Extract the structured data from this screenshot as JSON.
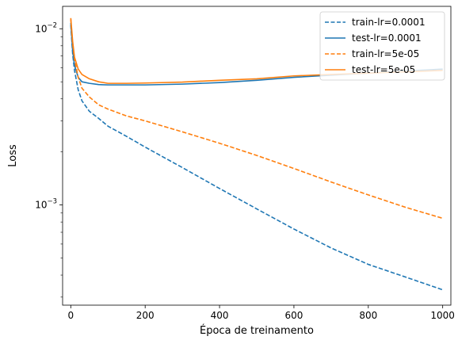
{
  "chart_data": {
    "type": "line",
    "title": "",
    "xlabel": "Época de treinamento",
    "ylabel": "Loss",
    "xlim": [
      -22,
      1022
    ],
    "ylim": [
      0.00027,
      0.0134
    ],
    "yscale": "log",
    "grid": false,
    "legend_position": "upper-right",
    "x_ticks": [
      {
        "value": 0,
        "label": "0"
      },
      {
        "value": 200,
        "label": "200"
      },
      {
        "value": 400,
        "label": "400"
      },
      {
        "value": 600,
        "label": "600"
      },
      {
        "value": 800,
        "label": "800"
      },
      {
        "value": 1000,
        "label": "1000"
      }
    ],
    "y_major_ticks": [
      {
        "value": 0.001,
        "label_base": "10",
        "label_exp": "−3"
      },
      {
        "value": 0.01,
        "label_base": "10",
        "label_exp": "−2"
      }
    ],
    "y_minor_ticks": [
      0.0003,
      0.0004,
      0.0005,
      0.0006,
      0.0007,
      0.0008,
      0.0009,
      0.002,
      0.003,
      0.004,
      0.005,
      0.006,
      0.007,
      0.008,
      0.009
    ],
    "series": [
      {
        "name": "train-lr=0.0001",
        "color": "#1f77b4",
        "linestyle": "dashed",
        "x": [
          0,
          5,
          10,
          20,
          30,
          50,
          75,
          100,
          150,
          200,
          300,
          400,
          500,
          600,
          700,
          800,
          900,
          1000
        ],
        "y": [
          0.0105,
          0.0072,
          0.0058,
          0.0045,
          0.0039,
          0.0034,
          0.0031,
          0.0028,
          0.00245,
          0.00213,
          0.00163,
          0.00124,
          0.00095,
          0.00073,
          0.00057,
          0.00046,
          0.00039,
          0.00033
        ]
      },
      {
        "name": "test-lr=0.0001",
        "color": "#1f77b4",
        "linestyle": "solid",
        "x": [
          0,
          5,
          10,
          20,
          30,
          50,
          75,
          100,
          150,
          200,
          300,
          400,
          500,
          600,
          700,
          800,
          900,
          1000
        ],
        "y": [
          0.0108,
          0.0075,
          0.0062,
          0.0053,
          0.005,
          0.0049,
          0.00482,
          0.0048,
          0.0048,
          0.0048,
          0.00485,
          0.00495,
          0.0051,
          0.0053,
          0.00545,
          0.0056,
          0.00575,
          0.0059
        ]
      },
      {
        "name": "train-lr=5e-05",
        "color": "#ff7f0e",
        "linestyle": "dashed",
        "x": [
          0,
          5,
          10,
          20,
          30,
          50,
          75,
          100,
          150,
          200,
          300,
          400,
          500,
          600,
          700,
          800,
          900,
          1000
        ],
        "y": [
          0.0113,
          0.0082,
          0.0067,
          0.0053,
          0.0046,
          0.0041,
          0.0037,
          0.0035,
          0.0032,
          0.003,
          0.0026,
          0.00224,
          0.00191,
          0.00161,
          0.00135,
          0.00114,
          0.00097,
          0.00084
        ]
      },
      {
        "name": "test-lr=5e-05",
        "color": "#ff7f0e",
        "linestyle": "solid",
        "x": [
          0,
          5,
          10,
          20,
          30,
          50,
          75,
          100,
          150,
          200,
          300,
          400,
          500,
          600,
          700,
          800,
          900,
          1000
        ],
        "y": [
          0.0115,
          0.0085,
          0.0069,
          0.0059,
          0.0055,
          0.0052,
          0.005,
          0.0049,
          0.0049,
          0.00492,
          0.00498,
          0.0051,
          0.0052,
          0.0054,
          0.0055,
          0.0056,
          0.0057,
          0.0058
        ]
      }
    ]
  }
}
